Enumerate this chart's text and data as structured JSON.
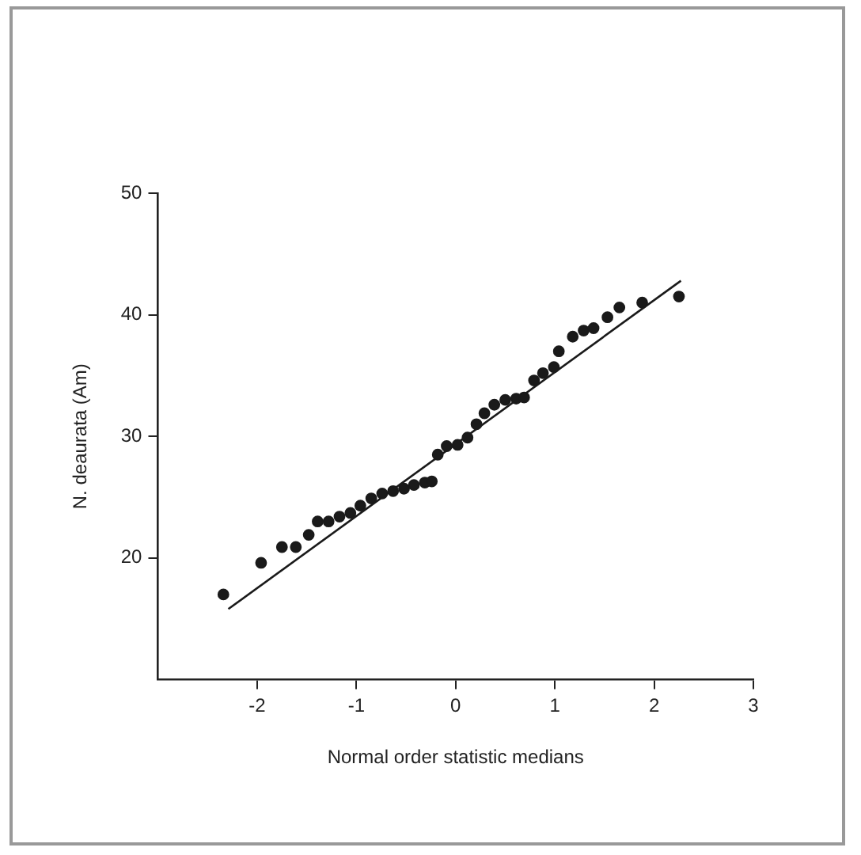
{
  "chart_data": {
    "type": "scatter",
    "xlabel": "Normal order statistic medians",
    "ylabel": "N. deaurata (Am)",
    "xlim": [
      -3,
      3
    ],
    "ylim": [
      10,
      50
    ],
    "xticks": [
      -2,
      -1,
      0,
      1,
      2,
      3
    ],
    "yticks": [
      20,
      30,
      40,
      50
    ],
    "grid": false,
    "legend": false,
    "marker": "circle",
    "series": [
      {
        "color": "#1a1a1a",
        "x": [
          -2.34,
          -1.96,
          -1.75,
          -1.61,
          -1.48,
          -1.39,
          -1.28,
          -1.17,
          -1.06,
          -0.96,
          -0.85,
          -0.74,
          -0.63,
          -0.52,
          -0.42,
          -0.31,
          -0.24,
          -0.18,
          -0.09,
          0.02,
          0.12,
          0.21,
          0.29,
          0.39,
          0.5,
          0.61,
          0.69,
          0.79,
          0.88,
          0.99,
          1.04,
          1.18,
          1.29,
          1.39,
          1.53,
          1.65,
          1.88,
          2.25
        ],
        "values": [
          17.0,
          19.6,
          20.9,
          20.9,
          21.9,
          23.0,
          23.0,
          23.4,
          23.7,
          24.3,
          24.9,
          25.3,
          25.5,
          25.7,
          26.0,
          26.2,
          26.3,
          28.5,
          29.2,
          29.3,
          29.9,
          31.0,
          31.9,
          32.6,
          33.0,
          33.1,
          33.2,
          34.6,
          35.2,
          35.7,
          37.0,
          38.2,
          38.7,
          38.9,
          39.8,
          40.6,
          41.0,
          41.5
        ]
      },
      {
        "type": "line",
        "color": "#1a1a1a",
        "marker": "none",
        "line_style": "solid",
        "x": [
          -2.29,
          2.27
        ],
        "values": [
          15.8,
          42.8
        ]
      }
    ]
  }
}
